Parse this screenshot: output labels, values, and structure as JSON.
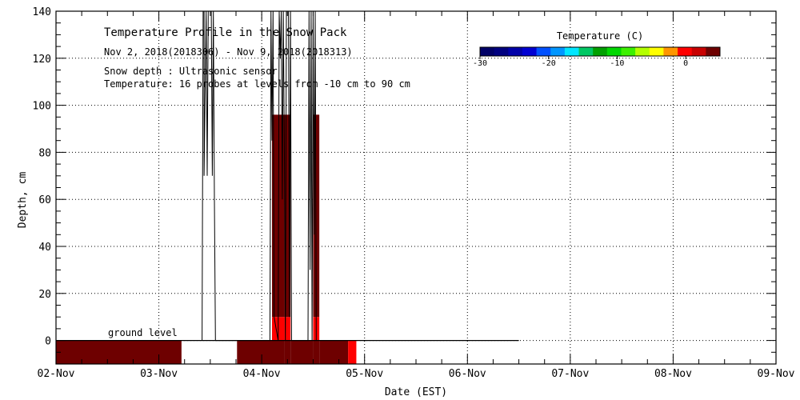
{
  "chart_data": {
    "type": "heatmap",
    "title": "Temperature Profile in the Snow Pack",
    "subtitle": "Nov  2, 2018(2018306) - Nov  9, 2018(2018313)",
    "notes": [
      "Snow depth : Ultrasonic sensor",
      "Temperature: 16 probes at levels from -10 cm to 90 cm"
    ],
    "xlabel": "Date (EST)",
    "ylabel": "Depth, cm",
    "x_ticks": [
      "02-Nov",
      "03-Nov",
      "04-Nov",
      "05-Nov",
      "06-Nov",
      "07-Nov",
      "08-Nov",
      "09-Nov"
    ],
    "x_range_days": [
      0,
      7
    ],
    "ylim": [
      -10,
      140
    ],
    "y_ticks": [
      0,
      20,
      40,
      60,
      80,
      100,
      120,
      140
    ],
    "ground_level_label": "ground level",
    "ground_level_value": 0,
    "ground_line_end_day": 4.5,
    "colorbar": {
      "title": "Temperature (C)",
      "range": [
        -30,
        5
      ],
      "tick_values": [
        -30,
        -20,
        -10,
        0
      ],
      "tick_labels": [
        "-30",
        "-20",
        "-10",
        "0"
      ],
      "colors": [
        "#000066",
        "#00007f",
        "#0000a8",
        "#0000d2",
        "#0050ff",
        "#0096ff",
        "#00e6ff",
        "#00c864",
        "#00a000",
        "#00d700",
        "#3cf000",
        "#b4ff00",
        "#ffff00",
        "#ff9600",
        "#ff0000",
        "#c80000",
        "#6e0000"
      ]
    },
    "temperature_cells": [
      {
        "x0": 0.0,
        "x1": 1.22,
        "y0": -10,
        "y1": 0,
        "color": "#6e0000"
      },
      {
        "x0": 1.76,
        "x1": 2.1,
        "y0": -10,
        "y1": 0,
        "color": "#6e0000"
      },
      {
        "x0": 2.1,
        "x1": 2.22,
        "y0": -10,
        "y1": 0,
        "color": "#6e0000"
      },
      {
        "x0": 2.22,
        "x1": 2.28,
        "y0": -10,
        "y1": 0,
        "color": "#6e0000"
      },
      {
        "x0": 2.28,
        "x1": 2.5,
        "y0": -10,
        "y1": 0,
        "color": "#6e0000"
      },
      {
        "x0": 2.5,
        "x1": 2.56,
        "y0": -10,
        "y1": 0,
        "color": "#6e0000"
      },
      {
        "x0": 2.56,
        "x1": 2.84,
        "y0": -10,
        "y1": 0,
        "color": "#6e0000"
      },
      {
        "x0": 2.84,
        "x1": 2.92,
        "y0": -10,
        "y1": 0,
        "color": "#ff0000"
      },
      {
        "x0": 2.1,
        "x1": 2.22,
        "y0": 0,
        "y1": 10,
        "color": "#ff0000"
      },
      {
        "x0": 2.22,
        "x1": 2.28,
        "y0": 0,
        "y1": 10,
        "color": "#ff0000"
      },
      {
        "x0": 2.5,
        "x1": 2.56,
        "y0": 0,
        "y1": 10,
        "color": "#ff0000"
      },
      {
        "x0": 2.1,
        "x1": 2.22,
        "y0": 10,
        "y1": 96,
        "color": "#6e0000"
      },
      {
        "x0": 2.22,
        "x1": 2.28,
        "y0": 10,
        "y1": 96,
        "color": "#6e0000"
      },
      {
        "x0": 2.5,
        "x1": 2.56,
        "y0": 10,
        "y1": 96,
        "color": "#6e0000"
      }
    ],
    "snow_depth_trace": {
      "x": [
        1.42,
        1.43,
        1.44,
        1.44,
        1.46,
        1.47,
        1.48,
        1.49,
        1.5,
        1.51,
        1.52,
        1.53,
        1.54,
        1.55,
        1.56,
        1.57,
        1.58,
        2.08,
        2.09,
        2.1,
        2.11,
        2.12,
        2.16,
        2.17,
        2.18,
        2.19,
        2.2,
        2.21,
        2.22,
        2.23,
        2.24,
        2.25,
        2.26,
        2.27,
        2.28,
        2.29,
        2.3,
        2.31,
        2.45,
        2.46,
        2.47,
        2.48,
        2.49,
        2.5,
        2.51,
        2.52,
        2.53
      ],
      "y": [
        0,
        140,
        140,
        70,
        140,
        70,
        140,
        140,
        140,
        140,
        70,
        140,
        60,
        0,
        0,
        0,
        0,
        0,
        140,
        85,
        140,
        10,
        0,
        140,
        120,
        140,
        60,
        140,
        85,
        0,
        140,
        140,
        140,
        10,
        140,
        0,
        0,
        0,
        0,
        140,
        30,
        140,
        0,
        140,
        45,
        140,
        0
      ]
    }
  }
}
